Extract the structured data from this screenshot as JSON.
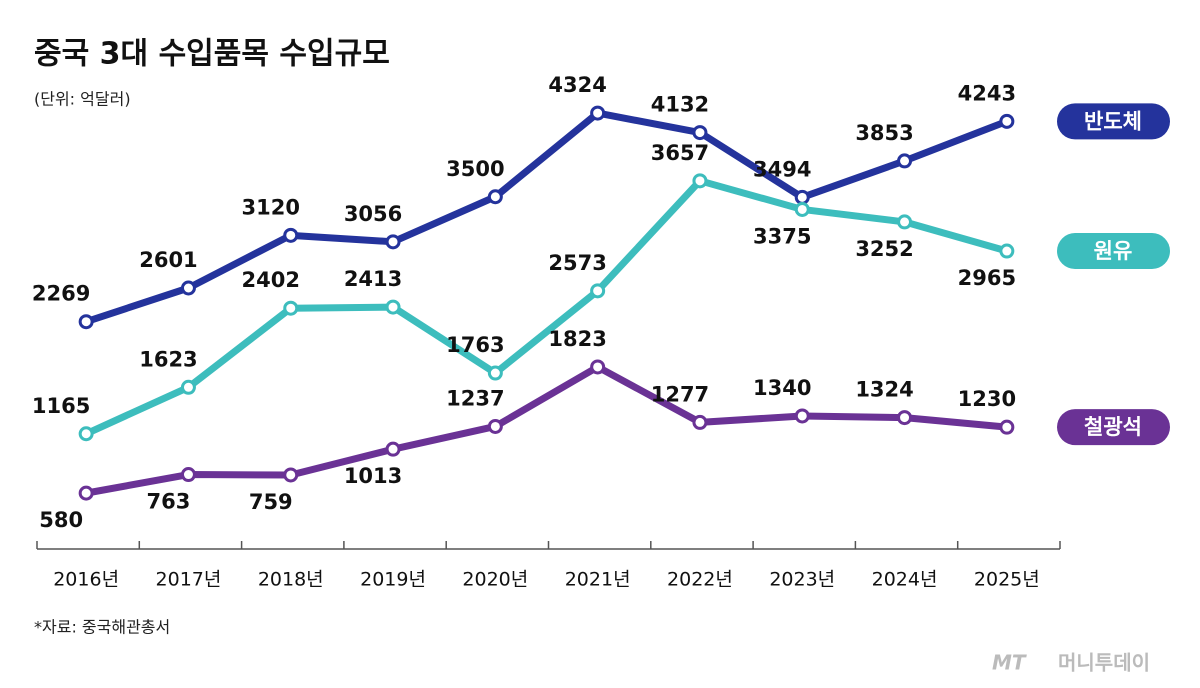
{
  "chart_data": {
    "type": "line",
    "title": "중국 3대 수입품목 수입규모",
    "subtitle": "(단위: 억달러)",
    "source": "*자료: 중국해관총서",
    "watermark": "머니투데이",
    "watermark_logo": "MT",
    "categories": [
      "2016년",
      "2017년",
      "2018년",
      "2019년",
      "2020년",
      "2021년",
      "2022년",
      "2023년",
      "2024년",
      "2025년"
    ],
    "series": [
      {
        "name": "반도체",
        "color": "#24339c",
        "values": [
          2269,
          2601,
          3120,
          3056,
          3500,
          4324,
          4132,
          3494,
          3853,
          4243
        ]
      },
      {
        "name": "원유",
        "color": "#3dbdbd",
        "values": [
          1165,
          1623,
          2402,
          2413,
          1763,
          2573,
          3657,
          3375,
          3252,
          2965
        ]
      },
      {
        "name": "철광석",
        "color": "#6a3295",
        "values": [
          580,
          763,
          759,
          1013,
          1237,
          1823,
          1277,
          1340,
          1324,
          1230
        ]
      }
    ],
    "ylim": [
      0,
      5000
    ]
  }
}
